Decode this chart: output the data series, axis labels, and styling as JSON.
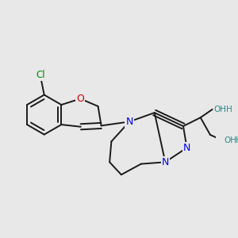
{
  "background_color": "#e8e8e8",
  "bond_color": "#1a1a1a",
  "bond_width": 1.4,
  "N_color": "#0000ee",
  "O_color": "#cc0000",
  "Cl_color": "#008800",
  "OH_color": "#2a8a8a",
  "H_color": "#2a8a8a",
  "xlim": [
    0,
    10
  ],
  "ylim": [
    0,
    10
  ]
}
